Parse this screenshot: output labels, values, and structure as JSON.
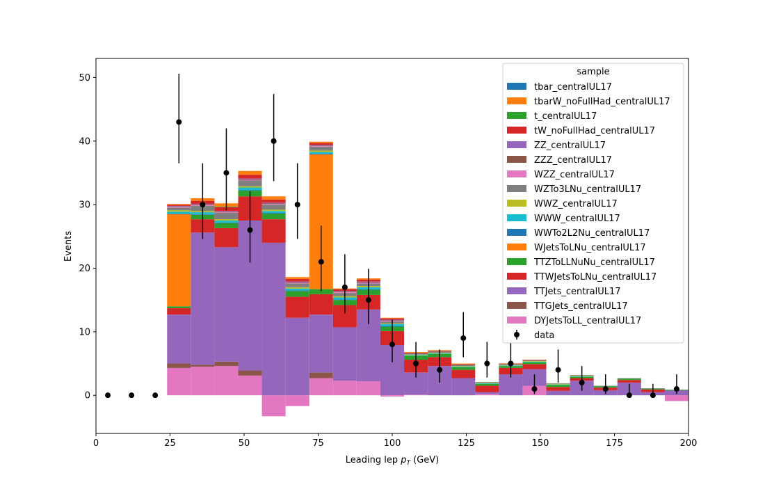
{
  "chart_data": {
    "type": "bar",
    "stacked": true,
    "xlabel": "Leading lep p_T (GeV)",
    "ylabel": "Events",
    "xlim": [
      0,
      200
    ],
    "ylim": [
      -6,
      53
    ],
    "x_ticks": [
      0,
      25,
      50,
      75,
      100,
      125,
      150,
      175,
      200
    ],
    "y_ticks": [
      0,
      10,
      20,
      30,
      40,
      50
    ],
    "legend_title": "sample",
    "legend_position": "top-right",
    "bin_edges": [
      24,
      32,
      40,
      48,
      56,
      64,
      72,
      80,
      88,
      96,
      104,
      112,
      120,
      128,
      136,
      144,
      152,
      160,
      168,
      176,
      184,
      192,
      200
    ],
    "series": [
      {
        "name": "DYJetsToLL_centralUL17",
        "color": "#e377c2",
        "values": [
          4.3,
          4.5,
          4.6,
          3.1,
          -3.3,
          -1.7,
          2.7,
          2.3,
          2.2,
          -0.2,
          0.1,
          0,
          0,
          0.2,
          0,
          1.5,
          0,
          0,
          0,
          0,
          0,
          -0.9
        ]
      },
      {
        "name": "TTGJets_centralUL17",
        "color": "#8c564b",
        "values": [
          0.7,
          0.3,
          0.7,
          0.8,
          0,
          0,
          0.9,
          0,
          0,
          0,
          0,
          0,
          0,
          0,
          0,
          0,
          0,
          0,
          0,
          0,
          0,
          0
        ]
      },
      {
        "name": "TTJets_centralUL17",
        "color": "#9467bd",
        "values": [
          7.7,
          20.8,
          18.0,
          23.6,
          24.0,
          12.2,
          9.1,
          8.4,
          11.3,
          7.9,
          3.5,
          4.6,
          2.7,
          0.3,
          3.3,
          2.6,
          0.7,
          2.3,
          0.8,
          2.0,
          0.5,
          0.8
        ]
      },
      {
        "name": "TTWJetsToLNu_centralUL17",
        "color": "#d62728",
        "values": [
          1.0,
          2.1,
          3.0,
          3.8,
          3.7,
          3.3,
          3.2,
          3.5,
          2.3,
          2.2,
          2.0,
          1.4,
          1.3,
          1.0,
          1.0,
          0.8,
          0.6,
          0.4,
          0.4,
          0.4,
          0.4,
          0
        ]
      },
      {
        "name": "TTZToLLNuNu_centralUL17",
        "color": "#2ca02c",
        "values": [
          0.3,
          0.7,
          0.8,
          0.9,
          0.9,
          0.9,
          0.8,
          0.8,
          0.8,
          0.7,
          0.6,
          0.5,
          0.4,
          0.3,
          0.3,
          0.3,
          0.3,
          0.2,
          0.2,
          0.2,
          0.1,
          0.1
        ]
      },
      {
        "name": "WJetsToLNu_centralUL17",
        "color": "#ff7f0e",
        "values": [
          14.5,
          0,
          0,
          0,
          0,
          0,
          21.2,
          0,
          0,
          0,
          0,
          0,
          0,
          0,
          0,
          0,
          0,
          0,
          0,
          0,
          0,
          0
        ]
      },
      {
        "name": "WWTo2L2Nu_centralUL17",
        "color": "#1f77b4",
        "values": [
          0.1,
          0.1,
          0.1,
          0.1,
          0.1,
          0.1,
          0.1,
          0.1,
          0.1,
          0.1,
          0,
          0,
          0,
          0,
          0,
          0,
          0,
          0,
          0,
          0,
          0,
          0
        ]
      },
      {
        "name": "WWW_centralUL17",
        "color": "#17becf",
        "values": [
          0.3,
          0.3,
          0.3,
          0.4,
          0.3,
          0.3,
          0.3,
          0.3,
          0.3,
          0.3,
          0.1,
          0.1,
          0.1,
          0.1,
          0.1,
          0.1,
          0.1,
          0.1,
          0,
          0,
          0,
          0
        ]
      },
      {
        "name": "WWZ_centralUL17",
        "color": "#bcbd22",
        "values": [
          0.2,
          0.2,
          0.2,
          0.2,
          0.2,
          0.2,
          0.2,
          0.2,
          0.2,
          0.1,
          0.1,
          0.1,
          0.1,
          0.1,
          0.1,
          0.1,
          0.1,
          0.1,
          0,
          0,
          0,
          0
        ]
      },
      {
        "name": "WZTo3LNu_centralUL17",
        "color": "#7f7f7f",
        "values": [
          0.4,
          0.8,
          1.0,
          0.9,
          0.8,
          0.6,
          0.6,
          0.5,
          0.4,
          0.3,
          0.2,
          0.2,
          0.2,
          0.1,
          0.1,
          0.1,
          0.1,
          0.1,
          0.1,
          0.1,
          0.1,
          0
        ]
      },
      {
        "name": "WZZ_centralUL17",
        "color": "#e377c2",
        "values": [
          0.1,
          0.1,
          0.1,
          0.1,
          0.1,
          0.1,
          0.1,
          0.1,
          0.1,
          0.1,
          0,
          0,
          0,
          0,
          0,
          0,
          0,
          0,
          0,
          0,
          0,
          0
        ]
      },
      {
        "name": "ZZZ_centralUL17",
        "color": "#8c564b",
        "values": [
          0.1,
          0.1,
          0.1,
          0.1,
          0.1,
          0.1,
          0.1,
          0.1,
          0.1,
          0.1,
          0,
          0,
          0,
          0,
          0,
          0,
          0,
          0,
          0,
          0,
          0,
          0
        ]
      },
      {
        "name": "ZZ_centralUL17",
        "color": "#9467bd",
        "values": [
          0.1,
          0.1,
          0.1,
          0.1,
          0.1,
          0.1,
          0.1,
          0.1,
          0.1,
          0.1,
          0,
          0,
          0,
          0,
          0,
          0,
          0,
          0,
          0,
          0,
          0,
          0
        ]
      },
      {
        "name": "tW_noFullHad_centralUL17",
        "color": "#d62728",
        "values": [
          0.2,
          0.5,
          0.6,
          0.6,
          0.5,
          0.4,
          0.3,
          0.3,
          0.3,
          0.2,
          0.1,
          0.1,
          0.1,
          0,
          0.1,
          0.1,
          0,
          0,
          0,
          0,
          0,
          0
        ]
      },
      {
        "name": "t_centralUL17",
        "color": "#2ca02c",
        "values": [
          0,
          0,
          0.1,
          0,
          0,
          0,
          0,
          0,
          0,
          0,
          0,
          0,
          0,
          0,
          0,
          0,
          0,
          0,
          0,
          0,
          0,
          0
        ]
      },
      {
        "name": "tbarW_noFullHad_centralUL17",
        "color": "#ff7f0e",
        "values": [
          0.1,
          0.4,
          0.5,
          0.6,
          0.5,
          0.3,
          0.2,
          0.1,
          0.2,
          0.1,
          0.1,
          0.1,
          0.1,
          0,
          0,
          0,
          0,
          0,
          0,
          0,
          0,
          0
        ]
      },
      {
        "name": "tbar_centralUL17",
        "color": "#1f77b4",
        "values": [
          0,
          0,
          0,
          0,
          0,
          0,
          0,
          0,
          0,
          0,
          0,
          0,
          0,
          0,
          0,
          0,
          0,
          0,
          0,
          0,
          0,
          0
        ]
      }
    ],
    "legend_order": [
      "tbar_centralUL17",
      "tbarW_noFullHad_centralUL17",
      "t_centralUL17",
      "tW_noFullHad_centralUL17",
      "ZZ_centralUL17",
      "ZZZ_centralUL17",
      "WZZ_centralUL17",
      "WZTo3LNu_centralUL17",
      "WWZ_centralUL17",
      "WWW_centralUL17",
      "WWTo2L2Nu_centralUL17",
      "WJetsToLNu_centralUL17",
      "TTZToLLNuNu_centralUL17",
      "TTWJetsToLNu_centralUL17",
      "TTJets_centralUL17",
      "TTGJets_centralUL17",
      "DYJetsToLL_centralUL17"
    ],
    "data": {
      "name": "data",
      "color": "#000000",
      "x": [
        4,
        12,
        20,
        28,
        36,
        44,
        52,
        60,
        68,
        76,
        84,
        92,
        100,
        108,
        116,
        124,
        132,
        140,
        148,
        156,
        164,
        172,
        180,
        188,
        196
      ],
      "y": [
        0,
        0,
        0,
        43,
        30,
        35,
        26,
        40,
        30,
        21,
        17,
        15,
        8,
        5,
        4,
        9,
        5,
        5,
        1,
        4,
        2,
        1,
        0,
        0,
        1
      ],
      "err_low": [
        0,
        0,
        0,
        6.5,
        5.4,
        5.9,
        5.1,
        6.3,
        5.4,
        4.6,
        4.1,
        3.8,
        2.8,
        2.2,
        2.0,
        3.0,
        2.2,
        2.2,
        0.8,
        2.0,
        1.3,
        0.8,
        0,
        0,
        0.8
      ],
      "err_high": [
        0,
        0,
        0,
        7.6,
        6.5,
        7.0,
        6.1,
        7.4,
        6.5,
        5.7,
        5.2,
        4.9,
        3.9,
        3.4,
        3.2,
        4.1,
        3.4,
        3.4,
        2.3,
        3.2,
        2.6,
        2.3,
        1.8,
        1.8,
        2.3
      ]
    }
  }
}
